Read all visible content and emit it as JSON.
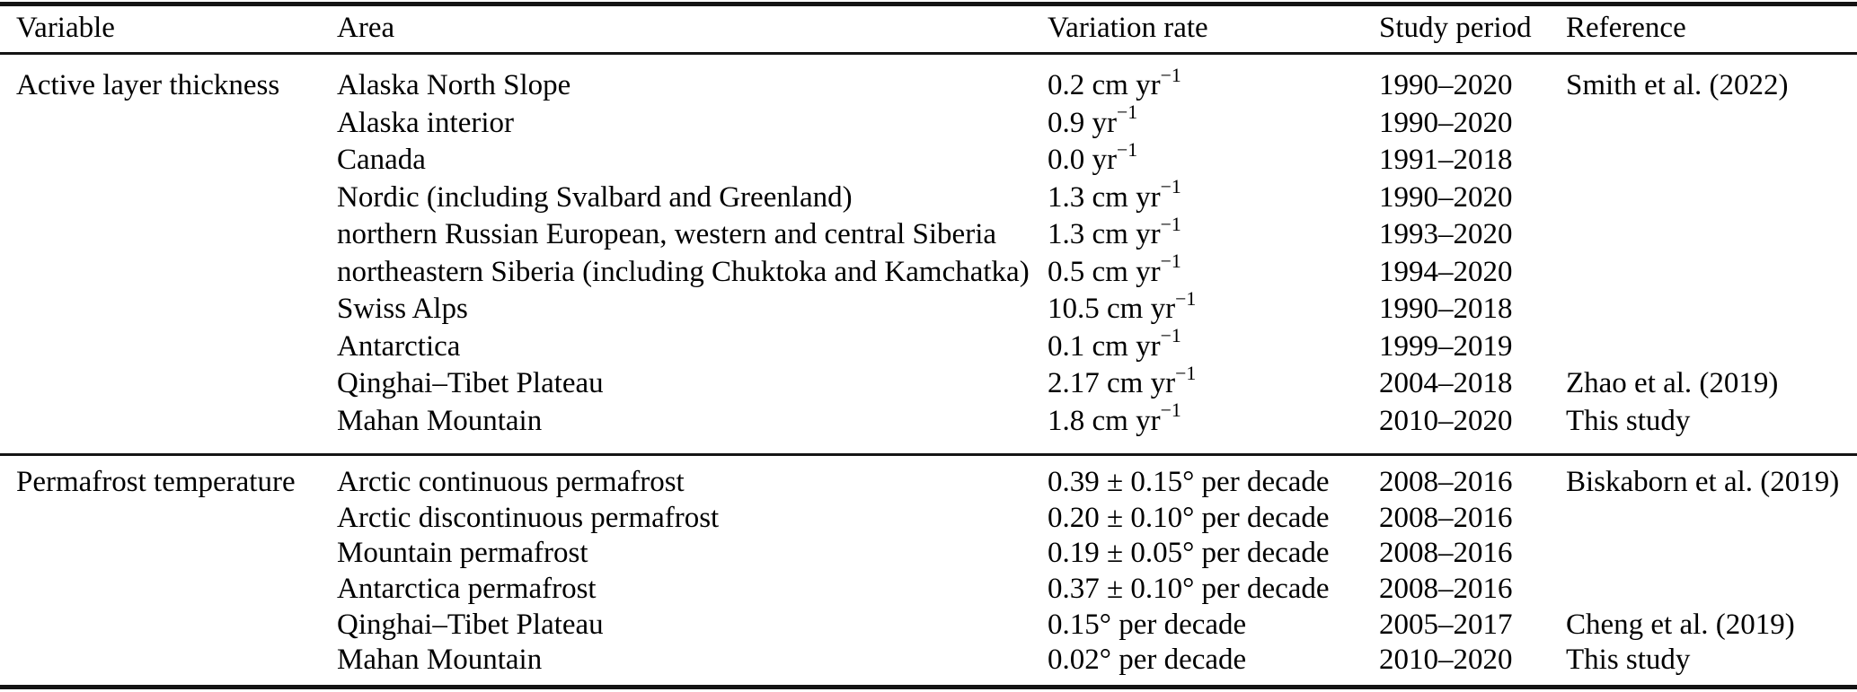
{
  "table": {
    "background_color": "#ffffff",
    "text_color": "#000000",
    "rule_color": "#141414",
    "columns": [
      "Variable",
      "Area",
      "Variation rate",
      "Study period",
      "Reference"
    ],
    "sections": [
      {
        "variable": "Active layer thickness",
        "rows": [
          {
            "area": "Alaska North Slope",
            "rate": "0.2 cm yr",
            "rate_sup": "−1",
            "period": "1990–2020",
            "reference": "Smith et al. (2022)"
          },
          {
            "area": "Alaska interior",
            "rate": "0.9 yr",
            "rate_sup": "−1",
            "period": "1990–2020",
            "reference": ""
          },
          {
            "area": "Canada",
            "rate": "0.0 yr",
            "rate_sup": "−1",
            "period": "1991–2018",
            "reference": ""
          },
          {
            "area": "Nordic (including Svalbard and Greenland)",
            "rate": "1.3 cm yr",
            "rate_sup": "−1",
            "period": "1990–2020",
            "reference": ""
          },
          {
            "area": "northern Russian European, western and central Siberia",
            "rate": "1.3 cm yr",
            "rate_sup": "−1",
            "period": "1993–2020",
            "reference": ""
          },
          {
            "area": "northeastern Siberia (including Chuktoka and Kamchatka)",
            "rate": "0.5 cm yr",
            "rate_sup": "−1",
            "period": "1994–2020",
            "reference": ""
          },
          {
            "area": "Swiss Alps",
            "rate": "10.5 cm yr",
            "rate_sup": "−1",
            "period": "1990–2018",
            "reference": ""
          },
          {
            "area": "Antarctica",
            "rate": "0.1 cm yr",
            "rate_sup": "−1",
            "period": "1999–2019",
            "reference": ""
          },
          {
            "area": "Qinghai–Tibet Plateau",
            "rate": "2.17 cm yr",
            "rate_sup": "−1",
            "period": "2004–2018",
            "reference": "Zhao et al. (2019)"
          },
          {
            "area": "Mahan Mountain",
            "rate": "1.8 cm yr",
            "rate_sup": "−1",
            "period": "2010–2020",
            "reference": "This study"
          }
        ]
      },
      {
        "variable": "Permafrost temperature",
        "rows": [
          {
            "area": "Arctic continuous permafrost",
            "rate": "0.39 ± 0.15° per decade",
            "rate_sup": "",
            "period": "2008–2016",
            "reference": "Biskaborn et al. (2019)"
          },
          {
            "area": "Arctic discontinuous permafrost",
            "rate": "0.20 ± 0.10° per decade",
            "rate_sup": "",
            "period": "2008–2016",
            "reference": ""
          },
          {
            "area": "Mountain permafrost",
            "rate": "0.19 ± 0.05° per decade",
            "rate_sup": "",
            "period": "2008–2016",
            "reference": ""
          },
          {
            "area": "Antarctica permafrost",
            "rate": "0.37 ± 0.10° per decade",
            "rate_sup": "",
            "period": "2008–2016",
            "reference": ""
          },
          {
            "area": "Qinghai–Tibet Plateau",
            "rate": "0.15° per decade",
            "rate_sup": "",
            "period": "2005–2017",
            "reference": "Cheng et al. (2019)"
          },
          {
            "area": "Mahan Mountain",
            "rate": "0.02° per decade",
            "rate_sup": "",
            "period": "2010–2020",
            "reference": "This study"
          }
        ]
      }
    ]
  }
}
